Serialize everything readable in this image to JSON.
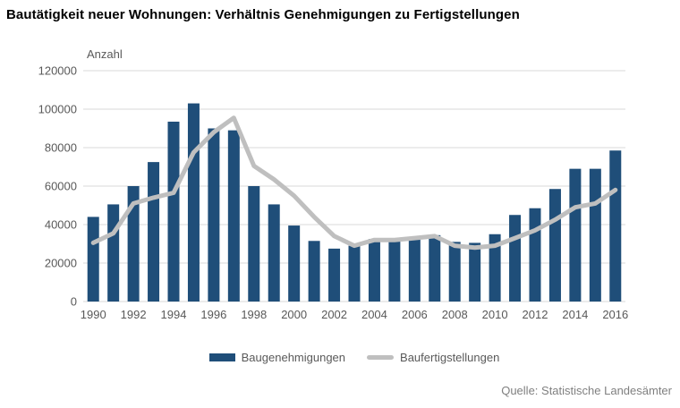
{
  "source": "Quelle: Statistische Landesämter",
  "colors": {
    "bar": "#1F4E79",
    "line": "#BFBFBF",
    "grid": "#D9D9D9",
    "axis_text": "#595959",
    "title_text": "#000000",
    "source_text": "#808080"
  },
  "chart_data": {
    "type": "bar",
    "title": "Bautätigkeit neuer Wohnungen: Verhältnis Genehmigungen zu Fertigstellungen",
    "ylabel": "Anzahl",
    "xlabel": "",
    "ylim": [
      0,
      120000
    ],
    "ytick_step": 20000,
    "xtick_every": 2,
    "grid": true,
    "legend_position": "bottom",
    "categories": [
      "1990",
      "1991",
      "1992",
      "1993",
      "1994",
      "1995",
      "1996",
      "1997",
      "1998",
      "1999",
      "2000",
      "2001",
      "2002",
      "2003",
      "2004",
      "2005",
      "2006",
      "2007",
      "2008",
      "2009",
      "2010",
      "2011",
      "2012",
      "2013",
      "2014",
      "2015",
      "2016"
    ],
    "series": [
      {
        "name": "Baugenehmigungen",
        "type": "bar",
        "color": "#1F4E79",
        "values": [
          44000,
          50500,
          60000,
          72500,
          93500,
          103000,
          90000,
          89000,
          60000,
          50500,
          39500,
          31500,
          27500,
          29000,
          32500,
          31500,
          32500,
          34500,
          31000,
          30500,
          35000,
          45000,
          48500,
          58500,
          69000,
          69000,
          78500
        ]
      },
      {
        "name": "Baufertigstellungen",
        "type": "line",
        "color": "#BFBFBF",
        "values": [
          30500,
          35500,
          51000,
          54000,
          56500,
          77500,
          88000,
          95500,
          70500,
          63500,
          55000,
          44000,
          34000,
          29000,
          32000,
          32000,
          33000,
          34000,
          29000,
          28000,
          29000,
          33000,
          37000,
          42500,
          49000,
          51000,
          58000
        ]
      }
    ]
  }
}
